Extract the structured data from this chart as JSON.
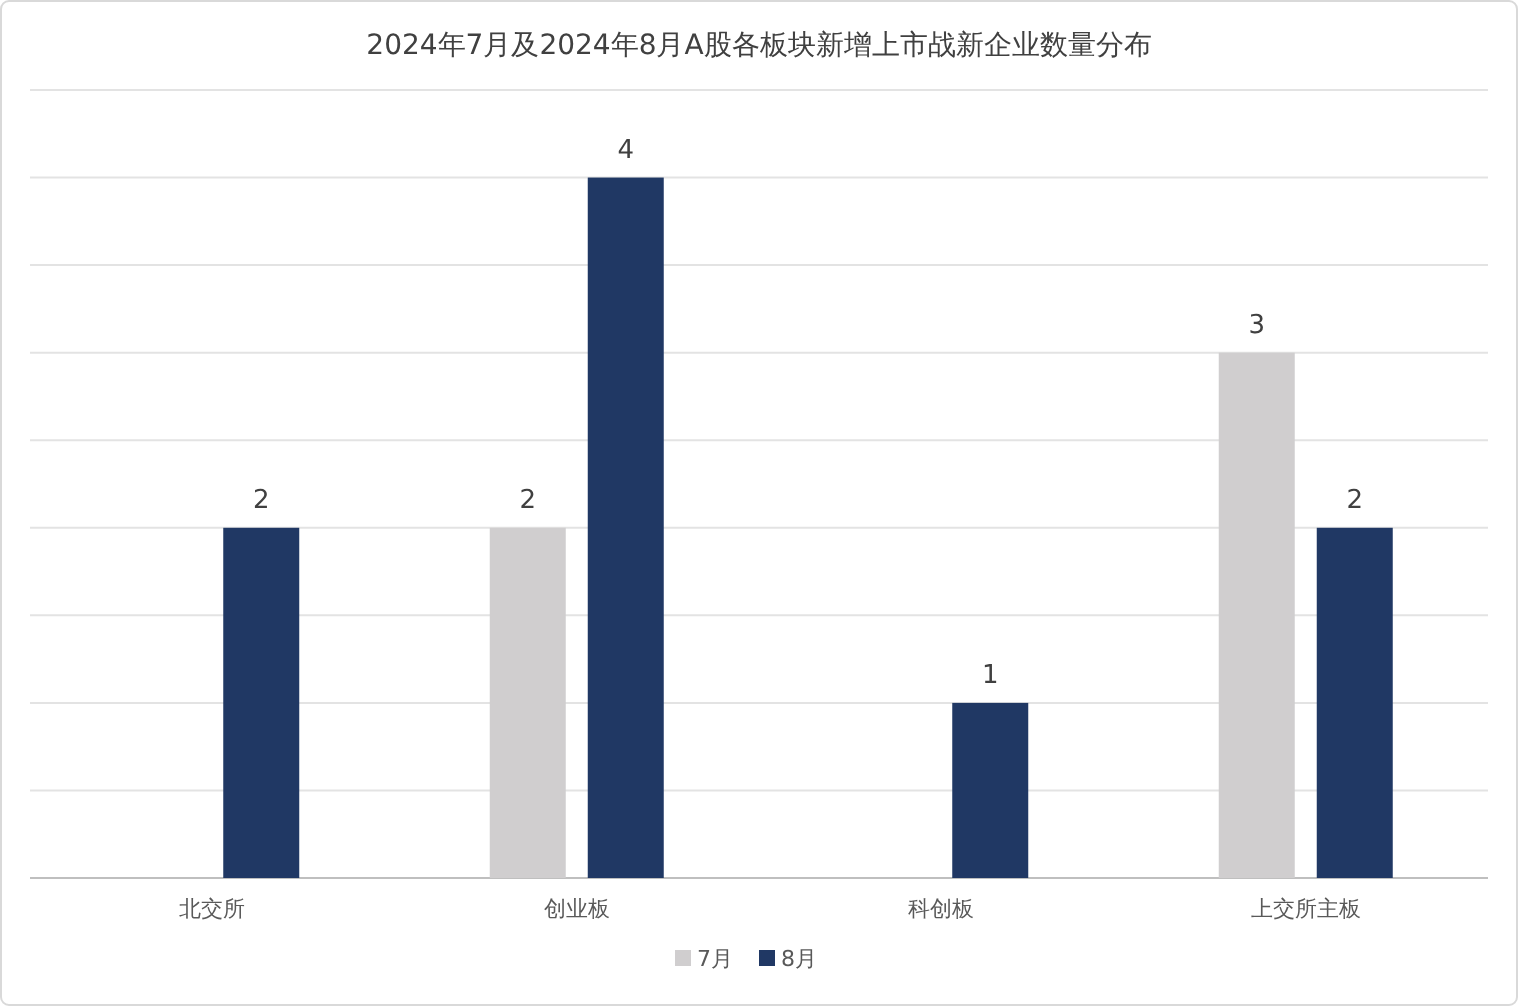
{
  "chart_data": {
    "type": "bar",
    "title": "2024年7月及2024年8月A股各板块新增上市战新企业数量分布",
    "categories": [
      "北交所",
      "创业板",
      "科创板",
      "上交所主板"
    ],
    "series": [
      {
        "name": "7月",
        "color": "#d0cecf",
        "values": [
          null,
          2,
          null,
          3
        ]
      },
      {
        "name": "8月",
        "color": "#203864",
        "values": [
          2,
          4,
          1,
          2
        ]
      }
    ],
    "ylim": [
      0,
      4.5
    ],
    "yticks": [
      {
        "value": 0,
        "label": null
      },
      {
        "value": 0.5,
        "label": null
      },
      {
        "value": 1,
        "label": null
      },
      {
        "value": 1.5,
        "label": null
      },
      {
        "value": 2,
        "label": null
      },
      {
        "value": 2.5,
        "label": null
      },
      {
        "value": 3,
        "label": null
      },
      {
        "value": 3.5,
        "label": null
      },
      {
        "value": 4,
        "label": null
      },
      {
        "value": 4.5,
        "label": null
      }
    ],
    "tick_labels": "x",
    "grid": "y",
    "legend": "bottom",
    "data_labels": true
  }
}
